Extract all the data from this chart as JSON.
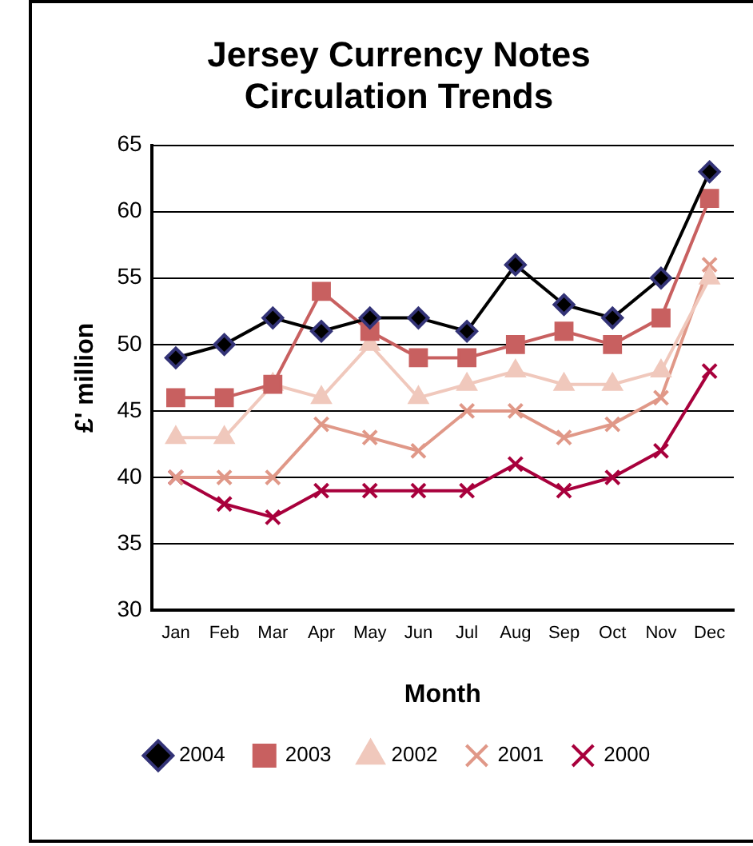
{
  "chart_data": {
    "type": "line",
    "title": [
      "Jersey Currency Notes",
      "Circulation Trends"
    ],
    "xlabel": "Month",
    "ylabel": "£' million",
    "categories": [
      "Jan",
      "Feb",
      "Mar",
      "Apr",
      "May",
      "Jun",
      "Jul",
      "Aug",
      "Sep",
      "Oct",
      "Nov",
      "Dec"
    ],
    "ylim": [
      30,
      65
    ],
    "yticks": [
      30,
      35,
      40,
      45,
      50,
      55,
      60,
      65
    ],
    "grid": "y",
    "legend": "bottom",
    "series": [
      {
        "name": "2004",
        "color": "#000000",
        "marker": "diamond",
        "values": [
          49,
          50,
          52,
          51,
          52,
          52,
          51,
          56,
          53,
          52,
          55,
          63
        ]
      },
      {
        "name": "2003",
        "color": "#c86060",
        "marker": "square",
        "values": [
          46,
          46,
          47,
          54,
          51,
          49,
          49,
          50,
          51,
          50,
          52,
          61
        ]
      },
      {
        "name": "2002",
        "color": "#f0c8bc",
        "marker": "triangle",
        "values": [
          43,
          43,
          47,
          46,
          50,
          46,
          47,
          48,
          47,
          47,
          48,
          55
        ]
      },
      {
        "name": "2001",
        "color": "#e09888",
        "marker": "cross",
        "values": [
          40,
          40,
          40,
          44,
          43,
          42,
          45,
          45,
          43,
          44,
          46,
          56
        ]
      },
      {
        "name": "2000",
        "color": "#a8003c",
        "marker": "cross",
        "values": [
          40,
          38,
          37,
          39,
          39,
          39,
          39,
          41,
          39,
          40,
          42,
          48
        ]
      }
    ]
  }
}
